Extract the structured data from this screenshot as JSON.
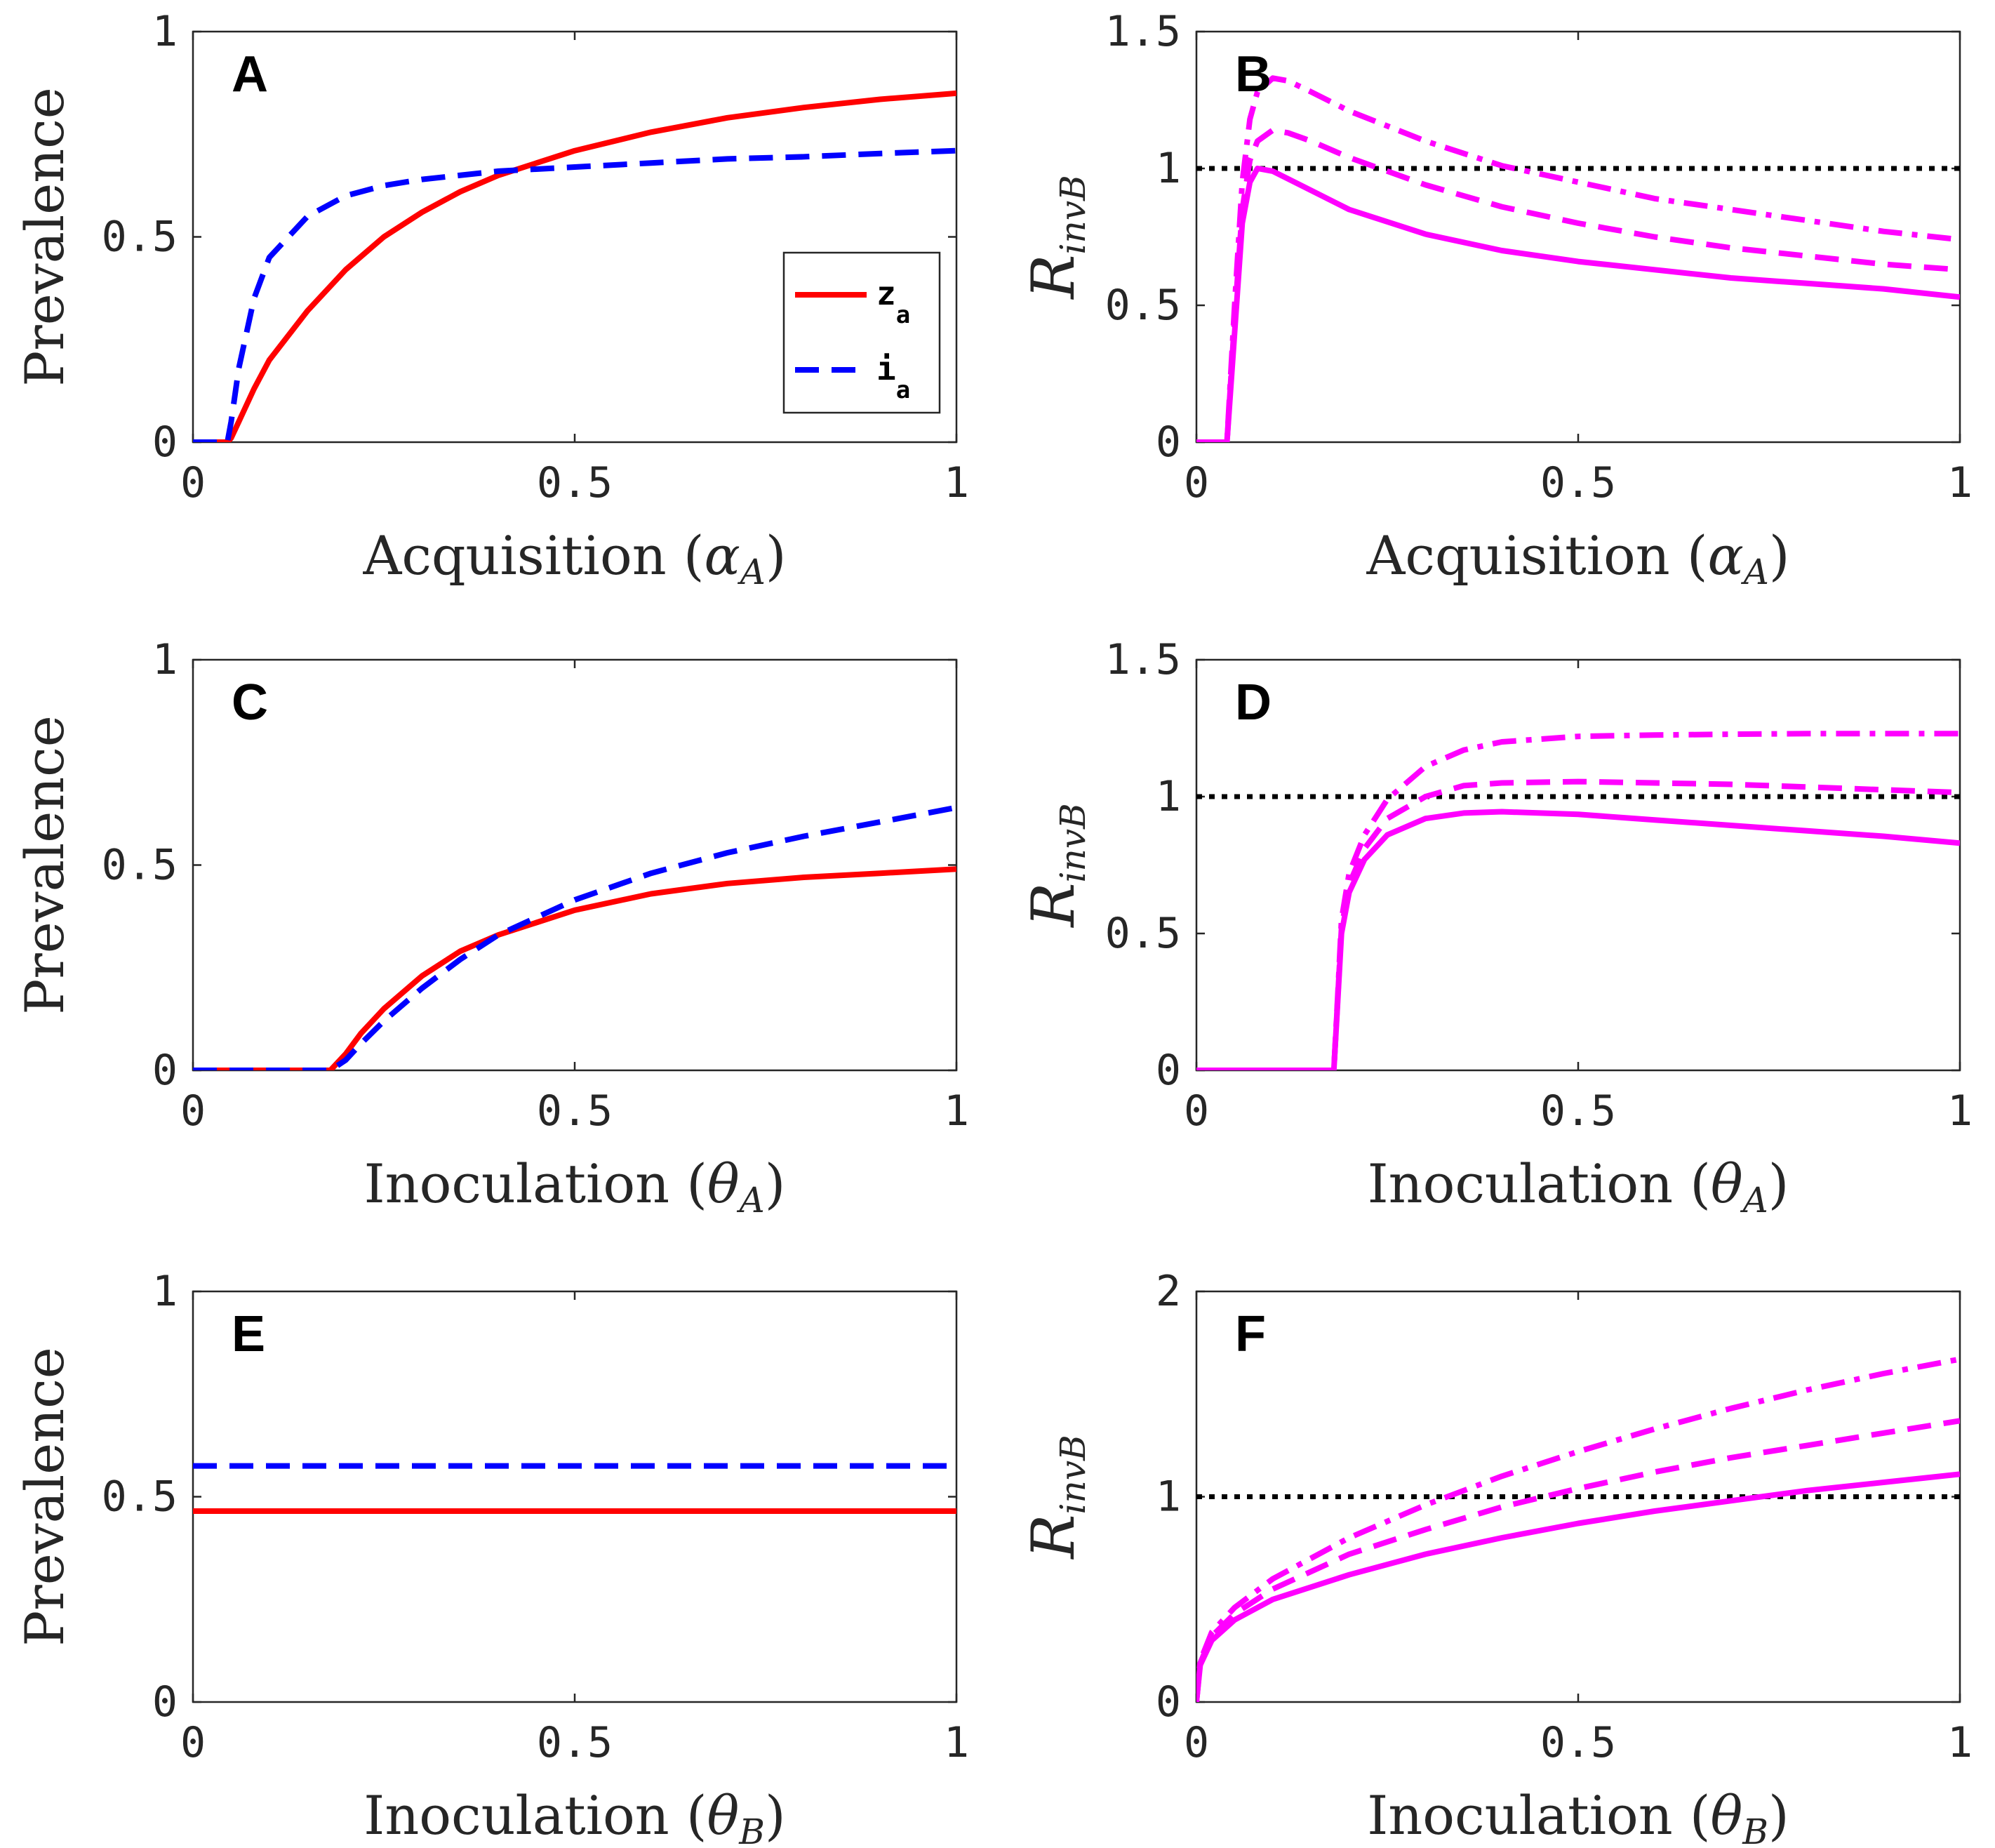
{
  "chart_data": [
    {
      "panel": "A",
      "type": "line",
      "xlabel": "Acquisition",
      "xlabel_symbol": "α",
      "xlabel_subscript": "A",
      "ylabel": "Prevalence",
      "xlim": [
        0,
        1
      ],
      "ylim": [
        0,
        1
      ],
      "xticks": [
        "0",
        "0.5",
        "1"
      ],
      "yticks": [
        "0",
        "0.5",
        "1"
      ],
      "legend": {
        "position": "bottom-right",
        "entries": [
          {
            "name": "z",
            "subscript": "a",
            "color": "#ff0000",
            "style": "solid"
          },
          {
            "name": "i",
            "subscript": "a",
            "color": "#0000ff",
            "style": "dashed"
          }
        ]
      },
      "series": [
        {
          "name": "z_a",
          "color": "#ff0000",
          "style": "solid",
          "x": [
            0,
            0.045,
            0.05,
            0.06,
            0.08,
            0.1,
            0.15,
            0.2,
            0.25,
            0.3,
            0.35,
            0.4,
            0.5,
            0.6,
            0.7,
            0.8,
            0.9,
            1.0
          ],
          "y": [
            0,
            0,
            0.01,
            0.05,
            0.13,
            0.2,
            0.32,
            0.42,
            0.5,
            0.56,
            0.61,
            0.65,
            0.71,
            0.755,
            0.79,
            0.815,
            0.835,
            0.85
          ]
        },
        {
          "name": "i_a",
          "color": "#0000ff",
          "style": "dashed",
          "x": [
            0,
            0.045,
            0.05,
            0.06,
            0.08,
            0.1,
            0.15,
            0.2,
            0.25,
            0.3,
            0.4,
            0.5,
            0.6,
            0.7,
            0.8,
            0.9,
            1.0
          ],
          "y": [
            0,
            0,
            0.05,
            0.18,
            0.35,
            0.45,
            0.55,
            0.6,
            0.625,
            0.64,
            0.66,
            0.67,
            0.68,
            0.69,
            0.695,
            0.703,
            0.71
          ]
        }
      ]
    },
    {
      "panel": "B",
      "type": "line",
      "xlabel": "Acquisition",
      "xlabel_symbol": "α",
      "xlabel_subscript": "A",
      "ylabel_symbol": "R",
      "ylabel_subscript": "invB",
      "xlim": [
        0,
        1
      ],
      "ylim": [
        0,
        1.5
      ],
      "xticks": [
        "0",
        "0.5",
        "1"
      ],
      "yticks": [
        "0",
        "0.5",
        "1",
        "1.5"
      ],
      "series": [
        {
          "name": "threshold",
          "color": "#000000",
          "style": "dotted",
          "x": [
            0,
            1
          ],
          "y": [
            1,
            1
          ]
        },
        {
          "name": "solid",
          "color": "#ff00ff",
          "style": "solid",
          "x": [
            0,
            0.04,
            0.05,
            0.06,
            0.07,
            0.08,
            0.1,
            0.15,
            0.2,
            0.3,
            0.4,
            0.5,
            0.6,
            0.7,
            0.8,
            0.9,
            1.0
          ],
          "y": [
            0,
            0,
            0.4,
            0.8,
            0.95,
            1.0,
            0.99,
            0.92,
            0.85,
            0.76,
            0.7,
            0.66,
            0.63,
            0.6,
            0.58,
            0.56,
            0.53
          ]
        },
        {
          "name": "dashed",
          "color": "#ff00ff",
          "style": "dashed",
          "x": [
            0,
            0.04,
            0.05,
            0.06,
            0.07,
            0.08,
            0.1,
            0.12,
            0.15,
            0.2,
            0.3,
            0.4,
            0.5,
            0.6,
            0.7,
            0.8,
            0.9,
            1.0
          ],
          "y": [
            0,
            0,
            0.45,
            0.85,
            1.03,
            1.1,
            1.14,
            1.13,
            1.1,
            1.04,
            0.94,
            0.86,
            0.8,
            0.75,
            0.71,
            0.68,
            0.65,
            0.63
          ]
        },
        {
          "name": "dashdot",
          "color": "#ff00ff",
          "style": "dashdot",
          "x": [
            0,
            0.04,
            0.05,
            0.06,
            0.07,
            0.08,
            0.1,
            0.12,
            0.15,
            0.2,
            0.3,
            0.4,
            0.5,
            0.6,
            0.7,
            0.8,
            0.9,
            1.0
          ],
          "y": [
            0,
            0,
            0.5,
            0.95,
            1.18,
            1.28,
            1.33,
            1.32,
            1.28,
            1.21,
            1.1,
            1.01,
            0.95,
            0.89,
            0.85,
            0.81,
            0.77,
            0.74
          ]
        }
      ]
    },
    {
      "panel": "C",
      "type": "line",
      "xlabel": "Inoculation",
      "xlabel_symbol": "θ",
      "xlabel_subscript": "A",
      "ylabel": "Prevalence",
      "xlim": [
        0,
        1
      ],
      "ylim": [
        0,
        1
      ],
      "xticks": [
        "0",
        "0.5",
        "1"
      ],
      "yticks": [
        "0",
        "0.5",
        "1"
      ],
      "series": [
        {
          "name": "z_a",
          "color": "#ff0000",
          "style": "solid",
          "x": [
            0,
            0.18,
            0.2,
            0.22,
            0.25,
            0.3,
            0.35,
            0.4,
            0.5,
            0.6,
            0.7,
            0.8,
            0.9,
            1.0
          ],
          "y": [
            0,
            0,
            0.04,
            0.09,
            0.15,
            0.23,
            0.29,
            0.33,
            0.39,
            0.43,
            0.455,
            0.47,
            0.48,
            0.49
          ]
        },
        {
          "name": "i_a",
          "color": "#0000ff",
          "style": "dashed",
          "x": [
            0,
            0.18,
            0.2,
            0.22,
            0.25,
            0.3,
            0.35,
            0.4,
            0.5,
            0.6,
            0.7,
            0.8,
            0.9,
            1.0
          ],
          "y": [
            0,
            0,
            0.025,
            0.065,
            0.12,
            0.2,
            0.27,
            0.33,
            0.415,
            0.48,
            0.53,
            0.57,
            0.605,
            0.64
          ]
        }
      ]
    },
    {
      "panel": "D",
      "type": "line",
      "xlabel": "Inoculation",
      "xlabel_symbol": "θ",
      "xlabel_subscript": "A",
      "ylabel_symbol": "R",
      "ylabel_subscript": "invB",
      "xlim": [
        0,
        1
      ],
      "ylim": [
        0,
        1.5
      ],
      "xticks": [
        "0",
        "0.5",
        "1"
      ],
      "yticks": [
        "0",
        "0.5",
        "1",
        "1.5"
      ],
      "series": [
        {
          "name": "threshold",
          "color": "#000000",
          "style": "dotted",
          "x": [
            0,
            1
          ],
          "y": [
            1,
            1
          ]
        },
        {
          "name": "solid",
          "color": "#ff00ff",
          "style": "solid",
          "x": [
            0,
            0.18,
            0.185,
            0.19,
            0.2,
            0.22,
            0.25,
            0.3,
            0.35,
            0.4,
            0.5,
            0.6,
            0.7,
            0.8,
            0.9,
            1.0
          ],
          "y": [
            0,
            0,
            0.25,
            0.5,
            0.65,
            0.77,
            0.86,
            0.92,
            0.94,
            0.945,
            0.935,
            0.915,
            0.895,
            0.875,
            0.855,
            0.83
          ]
        },
        {
          "name": "dashed",
          "color": "#ff00ff",
          "style": "dashed",
          "x": [
            0,
            0.18,
            0.185,
            0.19,
            0.2,
            0.22,
            0.25,
            0.3,
            0.35,
            0.4,
            0.5,
            0.6,
            0.7,
            0.8,
            0.9,
            1.0
          ],
          "y": [
            0,
            0,
            0.26,
            0.52,
            0.68,
            0.81,
            0.92,
            1.0,
            1.04,
            1.05,
            1.055,
            1.05,
            1.045,
            1.035,
            1.025,
            1.015
          ]
        },
        {
          "name": "dashdot",
          "color": "#ff00ff",
          "style": "dashdot",
          "x": [
            0,
            0.18,
            0.185,
            0.19,
            0.2,
            0.22,
            0.25,
            0.3,
            0.35,
            0.4,
            0.5,
            0.6,
            0.7,
            0.8,
            0.9,
            1.0
          ],
          "y": [
            0,
            0,
            0.27,
            0.55,
            0.72,
            0.86,
            0.99,
            1.11,
            1.17,
            1.2,
            1.22,
            1.225,
            1.228,
            1.23,
            1.23,
            1.23
          ]
        }
      ]
    },
    {
      "panel": "E",
      "type": "line",
      "xlabel": "Inoculation",
      "xlabel_symbol": "θ",
      "xlabel_subscript": "B",
      "ylabel": "Prevalence",
      "xlim": [
        0,
        1
      ],
      "ylim": [
        0,
        1
      ],
      "xticks": [
        "0",
        "0.5",
        "1"
      ],
      "yticks": [
        "0",
        "0.5",
        "1"
      ],
      "series": [
        {
          "name": "z_a",
          "color": "#ff0000",
          "style": "solid",
          "x": [
            0,
            1
          ],
          "y": [
            0.465,
            0.465
          ]
        },
        {
          "name": "i_a",
          "color": "#0000ff",
          "style": "dashed",
          "x": [
            0,
            1
          ],
          "y": [
            0.575,
            0.575
          ]
        }
      ]
    },
    {
      "panel": "F",
      "type": "line",
      "xlabel": "Inoculation",
      "xlabel_symbol": "θ",
      "xlabel_subscript": "B",
      "ylabel_symbol": "R",
      "ylabel_subscript": "invB",
      "xlim": [
        0,
        1
      ],
      "ylim": [
        0,
        2
      ],
      "xticks": [
        "0",
        "0.5",
        "1"
      ],
      "yticks": [
        "0",
        "1",
        "2"
      ],
      "series": [
        {
          "name": "threshold",
          "color": "#000000",
          "style": "dotted",
          "x": [
            0,
            1
          ],
          "y": [
            1,
            1
          ]
        },
        {
          "name": "solid",
          "color": "#ff00ff",
          "style": "solid",
          "x": [
            0,
            0.005,
            0.02,
            0.05,
            0.1,
            0.2,
            0.3,
            0.4,
            0.5,
            0.6,
            0.7,
            0.8,
            0.9,
            1.0
          ],
          "y": [
            0,
            0.18,
            0.3,
            0.4,
            0.5,
            0.62,
            0.72,
            0.8,
            0.87,
            0.93,
            0.98,
            1.03,
            1.07,
            1.11
          ]
        },
        {
          "name": "dashed",
          "color": "#ff00ff",
          "style": "dashed",
          "x": [
            0,
            0.005,
            0.02,
            0.05,
            0.1,
            0.2,
            0.3,
            0.4,
            0.5,
            0.6,
            0.7,
            0.8,
            0.9,
            1.0
          ],
          "y": [
            0,
            0.19,
            0.32,
            0.43,
            0.55,
            0.72,
            0.84,
            0.95,
            1.04,
            1.12,
            1.19,
            1.25,
            1.31,
            1.37
          ]
        },
        {
          "name": "dashdot",
          "color": "#ff00ff",
          "style": "dashdot",
          "x": [
            0,
            0.005,
            0.02,
            0.05,
            0.1,
            0.2,
            0.3,
            0.4,
            0.5,
            0.6,
            0.7,
            0.8,
            0.9,
            1.0
          ],
          "y": [
            0,
            0.2,
            0.34,
            0.46,
            0.6,
            0.8,
            0.96,
            1.1,
            1.22,
            1.33,
            1.43,
            1.52,
            1.6,
            1.67
          ]
        }
      ]
    }
  ]
}
